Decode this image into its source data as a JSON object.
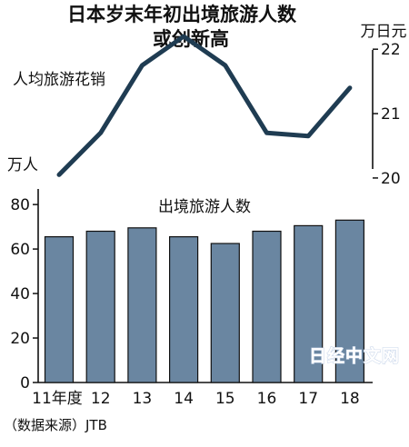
{
  "chart_data": [
    {
      "type": "line",
      "title_lines": [
        "日本岁末年初出境旅游人数",
        "或创新高"
      ],
      "label": "人均旅游花销",
      "ylabel": "万日元",
      "y_ticks": [
        "20",
        "21",
        "22"
      ],
      "ylim": [
        19.9,
        22.2
      ],
      "x": [
        "11",
        "12",
        "13",
        "14",
        "15",
        "16",
        "17",
        "18"
      ],
      "values": [
        20.05,
        20.7,
        21.75,
        22.2,
        21.75,
        20.7,
        20.65,
        21.4
      ],
      "color": "#1f3c52"
    },
    {
      "type": "bar",
      "title": "出境旅游人数",
      "ylabel": "万人",
      "categories": [
        "11年度",
        "12",
        "13",
        "14",
        "15",
        "16",
        "17",
        "18"
      ],
      "values": [
        65.5,
        68,
        69.5,
        65.5,
        62.5,
        68,
        70.5,
        73
      ],
      "y_ticks": [
        "0",
        "20",
        "40",
        "60",
        "80"
      ],
      "ylim": [
        0,
        87
      ],
      "color": "#6a86a1"
    }
  ],
  "source_note": "（数据来源）JTB",
  "watermark": "日经中文网"
}
